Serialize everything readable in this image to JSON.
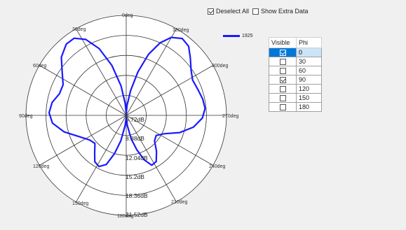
{
  "toolbar": {
    "deselect_all": {
      "label": "Deselect All",
      "checked": true
    },
    "show_extra": {
      "label": "Show Extra Data",
      "checked": false
    }
  },
  "legend": {
    "label": "1925",
    "color": "#1a1aff"
  },
  "table": {
    "headers": [
      "Visible",
      "Phi"
    ],
    "rows": [
      {
        "visible": true,
        "phi": "0",
        "selected": true
      },
      {
        "visible": false,
        "phi": "30",
        "selected": false
      },
      {
        "visible": false,
        "phi": "60",
        "selected": false
      },
      {
        "visible": true,
        "phi": "90",
        "selected": false
      },
      {
        "visible": false,
        "phi": "120",
        "selected": false
      },
      {
        "visible": false,
        "phi": "150",
        "selected": false
      },
      {
        "visible": false,
        "phi": "180",
        "selected": false
      }
    ]
  },
  "polar": {
    "angle_labels": [
      "0deg",
      "330deg",
      "300deg",
      "270deg",
      "240deg",
      "210deg",
      "180deg",
      "150deg",
      "120deg",
      "90deg",
      "60deg",
      "30deg"
    ],
    "ring_labels": [
      "5.72dB",
      "8.88dB",
      "12.04dB",
      "15.2dB",
      "18.36dB",
      "21.52dB"
    ]
  },
  "chart_data": {
    "type": "line",
    "coordinate_system": "polar",
    "series": [
      {
        "name": "1925",
        "color": "#1a1aff"
      }
    ],
    "angle_ticks": [
      "0deg",
      "30deg",
      "60deg",
      "90deg",
      "120deg",
      "150deg",
      "180deg",
      "210deg",
      "240deg",
      "270deg",
      "300deg",
      "330deg"
    ],
    "radial_ticks": [
      "5.72dB",
      "8.88dB",
      "12.04dB",
      "15.2dB",
      "18.36dB",
      "21.52dB"
    ]
  }
}
